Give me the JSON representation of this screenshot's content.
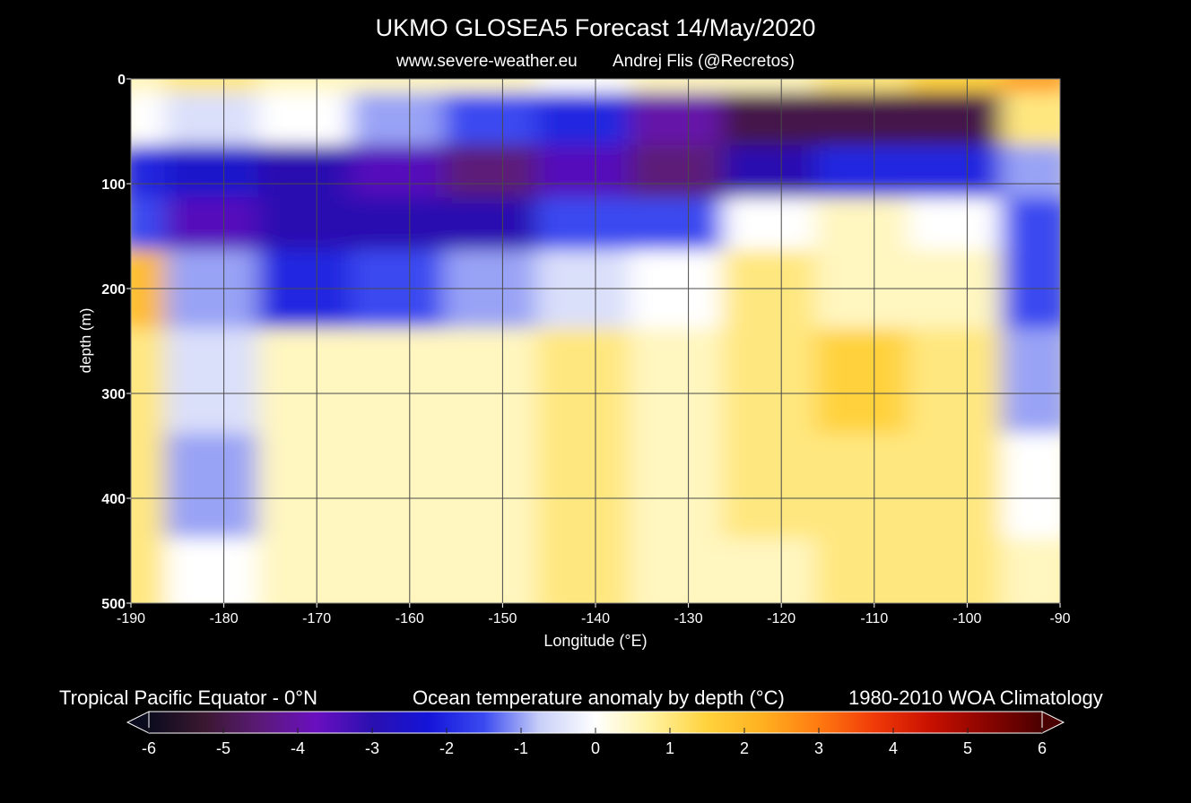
{
  "header": {
    "title": "UKMO GLOSEA5 Forecast 14/May/2020",
    "website": "www.severe-weather.eu",
    "author": "Andrej Flis (@Recretos)"
  },
  "footer": {
    "region": "Tropical Pacific Equator - 0°N",
    "variable": "Ocean temperature anomaly by depth (°C)",
    "climatology": "1980-2010 WOA Climatology"
  },
  "colors": {
    "background": "#000000",
    "grid": "#4a4a4a",
    "scale": [
      "#0b0b1e",
      "#3a1830",
      "#5b1a78",
      "#6a0fc0",
      "#2a10b0",
      "#1414d8",
      "#3a4af0",
      "#c8cff8",
      "#ffffff",
      "#fff2a0",
      "#ffd23c",
      "#ffb020",
      "#ff7a10",
      "#f03a08",
      "#c81000",
      "#8a0400",
      "#4a0000"
    ]
  },
  "chart_data": {
    "type": "heatmap",
    "title": "UKMO GLOSEA5 Forecast 14/May/2020",
    "xlabel": "Longitude (°E)",
    "ylabel": "depth (m)",
    "xlim": [
      -190,
      -90
    ],
    "ylim": [
      500,
      0
    ],
    "x_ticks": [
      -190,
      -180,
      -170,
      -160,
      -150,
      -140,
      -130,
      -120,
      -110,
      -100,
      -90
    ],
    "y_ticks": [
      0,
      100,
      200,
      300,
      400,
      500
    ],
    "colorbar": {
      "label": "Ocean temperature anomaly by depth (°C)",
      "range": [
        -6,
        6
      ],
      "ticks": [
        -6,
        -5,
        -4,
        -3,
        -2,
        -1,
        0,
        1,
        2,
        3,
        4,
        5,
        6
      ],
      "extend": "both"
    },
    "x": [
      -190,
      -180,
      -170,
      -160,
      -150,
      -140,
      -130,
      -120,
      -110,
      -100,
      -90
    ],
    "depth": [
      0,
      50,
      100,
      150,
      200,
      300,
      400,
      500
    ],
    "values": [
      [
        0.5,
        1.0,
        0.5,
        0.5,
        0.5,
        0.0,
        0.5,
        0.5,
        1.0,
        1.5,
        2.5
      ],
      [
        0.0,
        -0.5,
        0.0,
        -1.0,
        -1.5,
        -2.0,
        -4.0,
        -5.0,
        -5.0,
        -5.0,
        1.0
      ],
      [
        -2.0,
        -2.5,
        -3.0,
        -3.5,
        -4.5,
        -3.5,
        -4.5,
        -3.0,
        -2.0,
        -2.0,
        -1.0
      ],
      [
        -1.5,
        -3.5,
        -3.0,
        -3.0,
        -3.0,
        -1.5,
        -1.5,
        0.0,
        0.5,
        0.0,
        -1.5
      ],
      [
        2.0,
        -1.0,
        -2.0,
        -1.5,
        -1.0,
        -0.5,
        0.0,
        1.0,
        0.5,
        0.5,
        -1.5
      ],
      [
        1.0,
        -0.5,
        0.5,
        0.5,
        0.5,
        1.0,
        0.5,
        1.0,
        1.5,
        1.0,
        -1.0
      ],
      [
        1.0,
        -1.0,
        0.5,
        0.5,
        0.5,
        1.0,
        0.5,
        1.0,
        1.0,
        1.0,
        0.0
      ],
      [
        1.0,
        0.0,
        0.5,
        0.5,
        0.5,
        1.0,
        0.5,
        0.5,
        1.0,
        1.0,
        0.5
      ]
    ]
  }
}
